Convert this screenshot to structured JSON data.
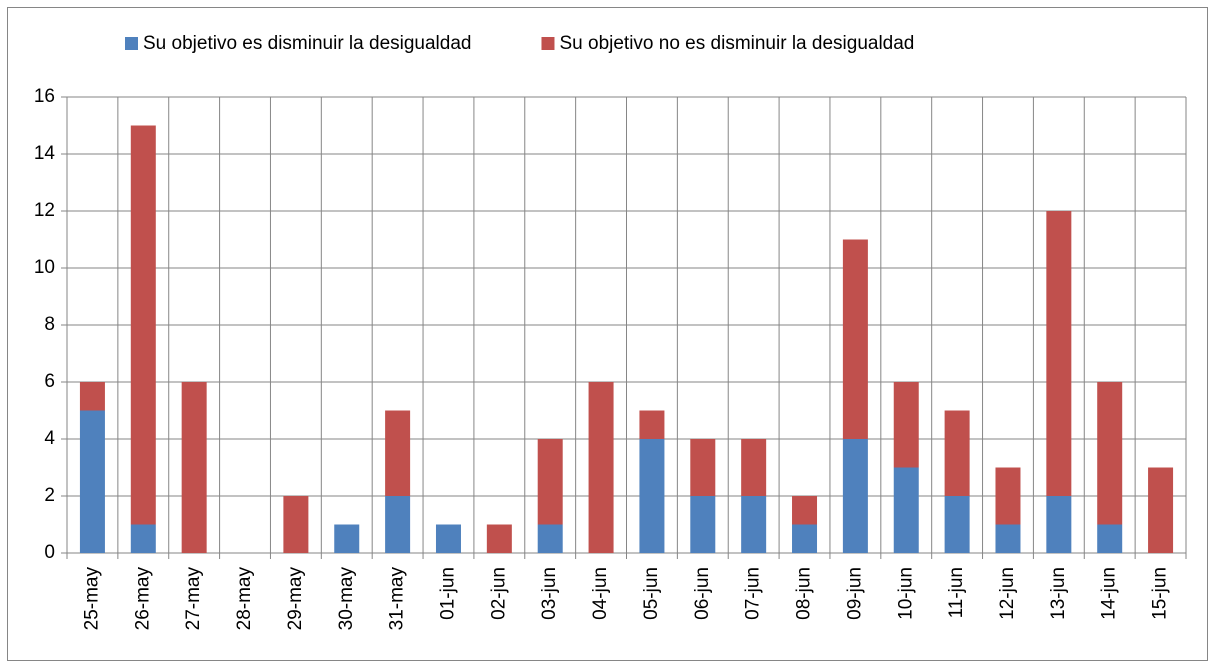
{
  "chart_data": {
    "type": "stacked-bar",
    "categories": [
      "25-may",
      "26-may",
      "27-may",
      "28-may",
      "29-may",
      "30-may",
      "31-may",
      "01-jun",
      "02-jun",
      "03-jun",
      "04-jun",
      "05-jun",
      "06-jun",
      "07-jun",
      "08-jun",
      "09-jun",
      "10-jun",
      "11-jun",
      "12-jun",
      "13-jun",
      "14-jun",
      "15-jun"
    ],
    "series": [
      {
        "name": "Su objetivo es disminuir la desigualdad",
        "color": "#4f81bd",
        "values": [
          5,
          1,
          0,
          0,
          0,
          1,
          2,
          1,
          0,
          1,
          0,
          4,
          2,
          2,
          1,
          4,
          3,
          2,
          1,
          2,
          1,
          0
        ]
      },
      {
        "name": "Su objetivo no es disminuir la desigualdad",
        "color": "#c0504d",
        "values": [
          1,
          14,
          6,
          0,
          2,
          0,
          3,
          0,
          1,
          3,
          6,
          1,
          2,
          2,
          1,
          7,
          3,
          3,
          2,
          10,
          5,
          3
        ]
      }
    ],
    "ylim": [
      0,
      16
    ],
    "yticks": [
      0,
      2,
      4,
      6,
      8,
      10,
      12,
      14,
      16
    ],
    "grid": true,
    "legend": "top"
  }
}
